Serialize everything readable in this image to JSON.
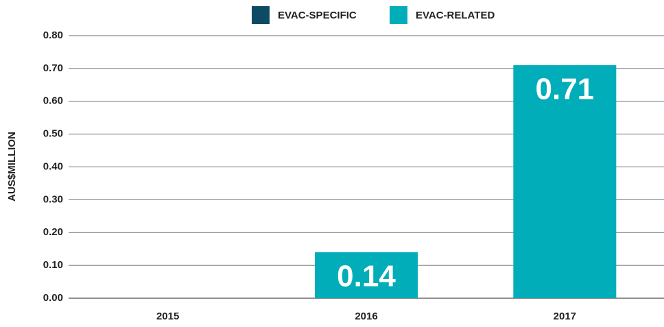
{
  "chart_data": {
    "type": "bar",
    "stacked": true,
    "y_label": "AUS$MILLION",
    "categories": [
      "2015",
      "2016",
      "2017"
    ],
    "series": [
      {
        "name": "EVAC-SPECIFIC",
        "color": "#0d4a63",
        "values": [
          0,
          0,
          0
        ]
      },
      {
        "name": "EVAC-RELATED",
        "color": "#00adb9",
        "values": [
          0,
          0.14,
          0.71
        ]
      }
    ],
    "ylim": [
      0,
      0.8
    ],
    "yticks": [
      {
        "value": 0,
        "label": "0.00"
      },
      {
        "value": 0.1,
        "label": "0.10"
      },
      {
        "value": 0.2,
        "label": "0.20"
      },
      {
        "value": 0.3,
        "label": "0.30"
      },
      {
        "value": 0.4,
        "label": "0.40"
      },
      {
        "value": 0.5,
        "label": "0.50"
      },
      {
        "value": 0.6,
        "label": "0.60"
      },
      {
        "value": 0.7,
        "label": "0.70"
      },
      {
        "value": 0.8,
        "label": "0.80"
      }
    ],
    "grid": true,
    "legend": "top"
  }
}
